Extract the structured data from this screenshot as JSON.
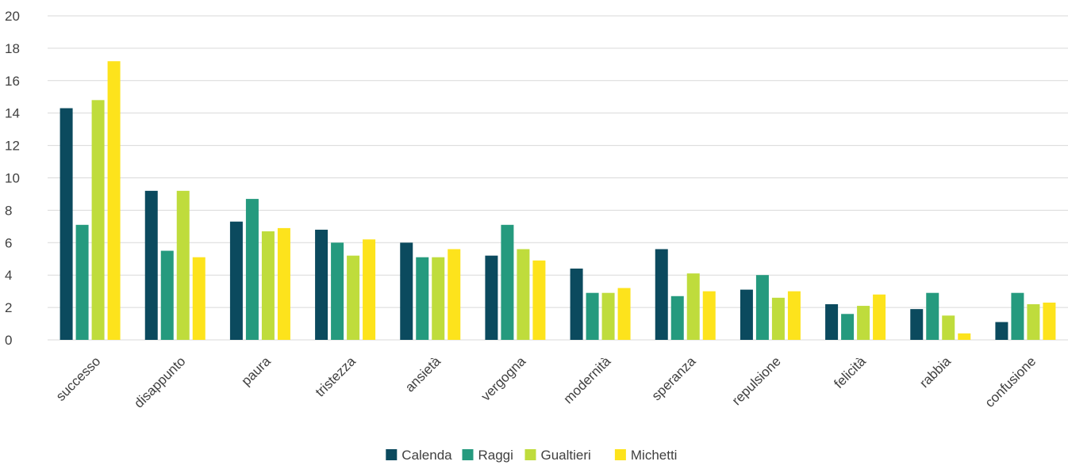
{
  "chart_data": {
    "type": "bar",
    "title": "",
    "xlabel": "",
    "ylabel": "",
    "ylim": [
      0,
      20
    ],
    "yticks": [
      0,
      2,
      4,
      6,
      8,
      10,
      12,
      14,
      16,
      18,
      20
    ],
    "grid": true,
    "legend_position": "bottom",
    "categories": [
      "successo",
      "disappunto",
      "paura",
      "tristezza",
      "ansietà",
      "vergogna",
      "modernità",
      "speranza",
      "repulsione",
      "felicità",
      "rabbia",
      "confusione"
    ],
    "series": [
      {
        "name": "Calenda",
        "color": "#0b4a5e",
        "values": [
          14.3,
          9.2,
          7.3,
          6.8,
          6.0,
          5.2,
          4.4,
          5.6,
          3.1,
          2.2,
          1.9,
          1.1
        ]
      },
      {
        "name": "Raggi",
        "color": "#259a7e",
        "values": [
          7.1,
          5.5,
          8.7,
          6.0,
          5.1,
          7.1,
          2.9,
          2.7,
          4.0,
          1.6,
          2.9,
          2.9
        ]
      },
      {
        "name": "Gualtieri",
        "color": "#bfdc3c",
        "values": [
          14.8,
          9.2,
          6.7,
          5.2,
          5.1,
          5.6,
          2.9,
          4.1,
          2.6,
          2.1,
          1.5,
          2.2
        ]
      },
      {
        "name": "Michetti",
        "color": "#fde31c",
        "values": [
          17.2,
          5.1,
          6.9,
          6.2,
          5.6,
          4.9,
          3.2,
          3.0,
          3.0,
          2.8,
          0.4,
          2.3
        ]
      }
    ]
  }
}
